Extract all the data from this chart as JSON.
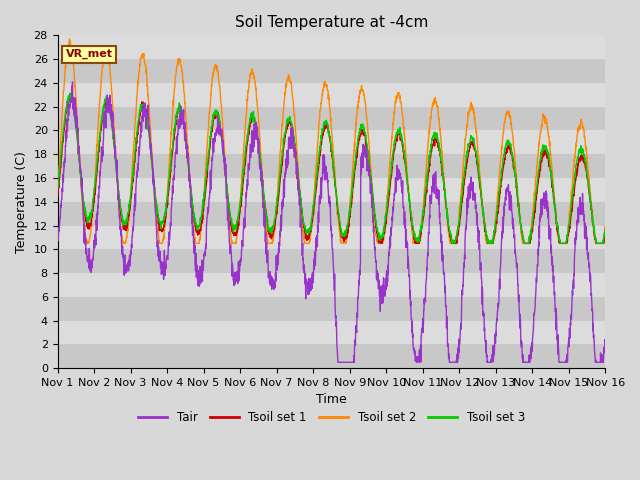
{
  "title": "Soil Temperature at -4cm",
  "xlabel": "Time",
  "ylabel": "Temperature (C)",
  "ylim": [
    0,
    28
  ],
  "annotation": "VR_met",
  "colors": {
    "Tair": "#9933CC",
    "Tsoil1": "#CC0000",
    "Tsoil2": "#FF8800",
    "Tsoil3": "#00CC00"
  },
  "legend_labels": [
    "Tair",
    "Tsoil set 1",
    "Tsoil set 2",
    "Tsoil set 3"
  ],
  "bg_color": "#D8D8D8",
  "band_light": "#DCDCDC",
  "band_dark": "#C8C8C8",
  "xtick_labels": [
    "Nov 1",
    "Nov 2",
    "Nov 3",
    "Nov 4",
    "Nov 5",
    "Nov 6",
    "Nov 7",
    "Nov 8",
    "Nov 9",
    "Nov 10",
    "Nov 11",
    "Nov 12",
    "Nov 13",
    "Nov 14",
    "Nov 15",
    "Nov 16"
  ],
  "n_days": 16,
  "points_per_day": 144,
  "title_fontsize": 11,
  "label_fontsize": 9,
  "tick_fontsize": 8
}
